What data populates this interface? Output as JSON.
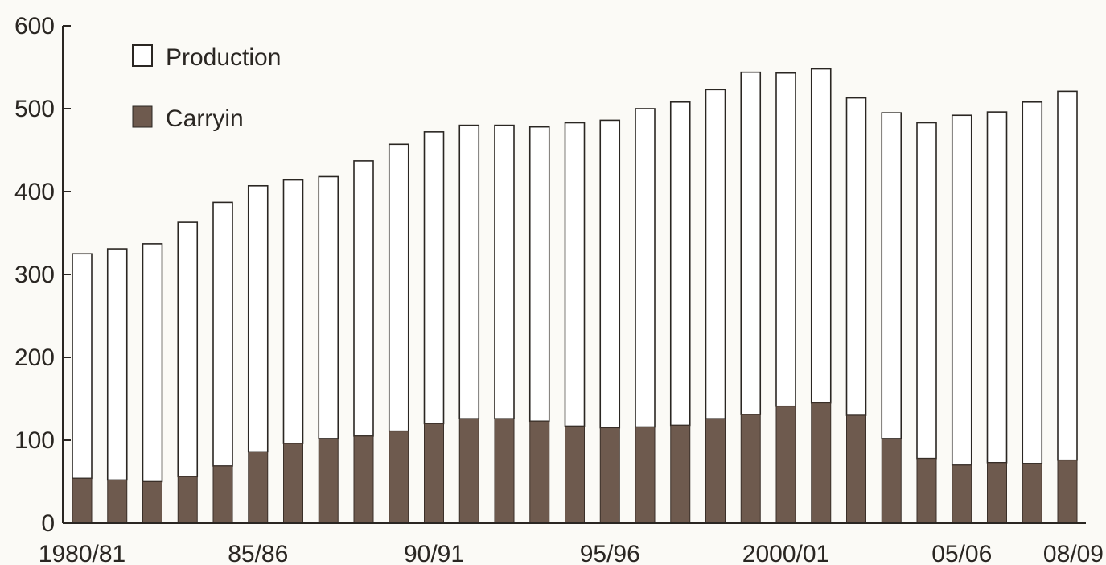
{
  "chart_data": {
    "type": "bar",
    "stacked": true,
    "categories": [
      "1980/81",
      "81/82",
      "82/83",
      "83/84",
      "84/85",
      "85/86",
      "86/87",
      "87/88",
      "88/89",
      "89/90",
      "90/91",
      "91/92",
      "92/93",
      "93/94",
      "94/95",
      "95/96",
      "96/97",
      "97/98",
      "98/99",
      "99/00",
      "2000/01",
      "01/02",
      "02/03",
      "03/04",
      "04/05",
      "05/06",
      "06/07",
      "07/08",
      "08/09"
    ],
    "x_tick_labels": [
      "1980/81",
      "85/86",
      "90/91",
      "95/96",
      "2000/01",
      "05/06",
      "08/09"
    ],
    "series": [
      {
        "name": "Carryin",
        "color": "#6e5a4e",
        "values": [
          54,
          52,
          50,
          56,
          69,
          86,
          96,
          102,
          105,
          111,
          120,
          126,
          126,
          123,
          117,
          115,
          116,
          118,
          126,
          131,
          141,
          145,
          130,
          102,
          78,
          70,
          73,
          72,
          76
        ]
      },
      {
        "name": "Production",
        "color": "#ffffff",
        "values": [
          271,
          279,
          287,
          307,
          318,
          321,
          318,
          316,
          332,
          346,
          352,
          354,
          354,
          355,
          366,
          371,
          384,
          390,
          397,
          413,
          402,
          403,
          383,
          393,
          405,
          422,
          423,
          436,
          445
        ]
      }
    ],
    "totals": [
      325,
      331,
      337,
      363,
      387,
      407,
      414,
      418,
      437,
      457,
      472,
      480,
      480,
      478,
      483,
      486,
      500,
      508,
      523,
      544,
      543,
      548,
      513,
      495,
      483,
      492,
      496,
      508,
      521
    ],
    "yticks": [
      0,
      100,
      200,
      300,
      400,
      500,
      600
    ],
    "ylim": [
      0,
      600
    ],
    "xlabel": "",
    "ylabel": "",
    "legend": {
      "position": "top-left",
      "items": [
        "Production",
        "Carryin"
      ]
    },
    "grid": false
  }
}
